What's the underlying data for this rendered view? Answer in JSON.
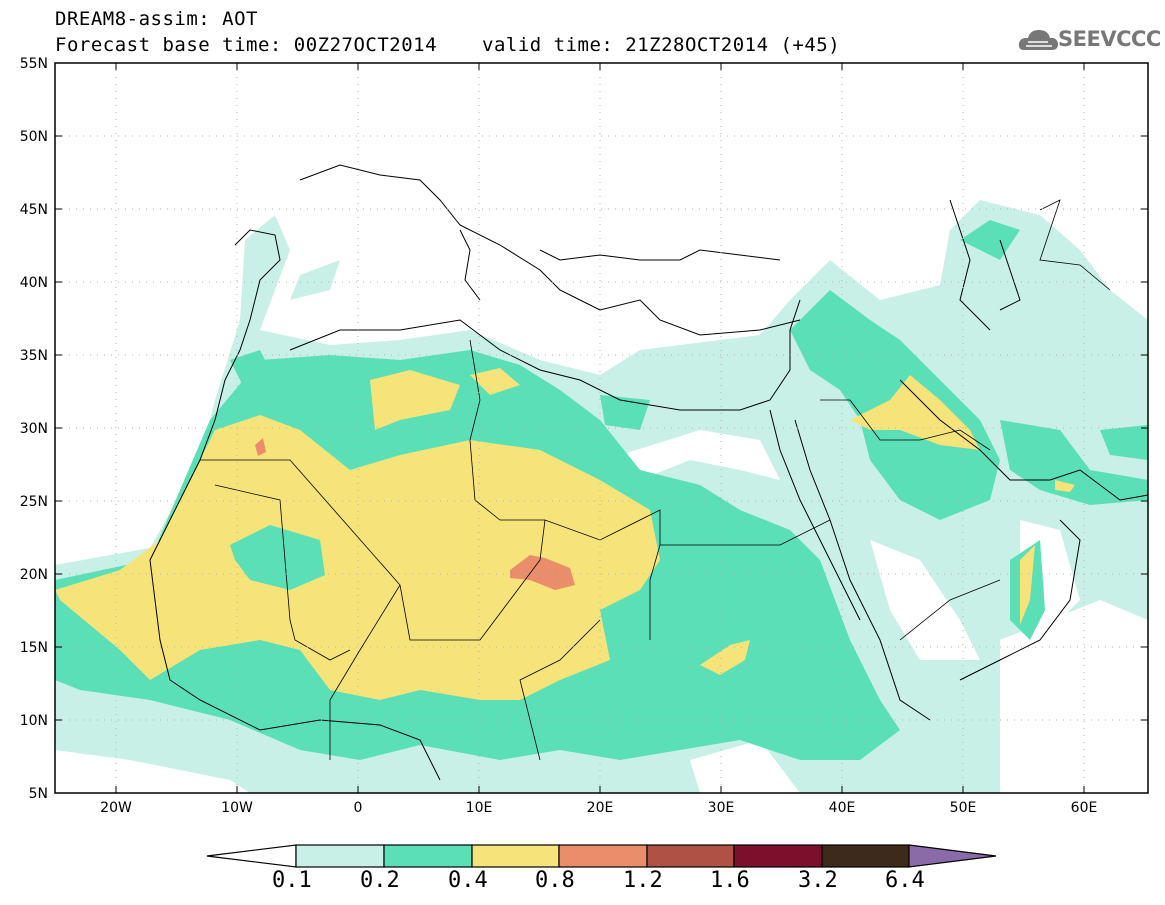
{
  "header": {
    "title_line1": "DREAM8-assim: AOT",
    "title_line2_left": "Forecast base time: 00Z27OCT2014",
    "title_line2_right": "valid time: 21Z28OCT2014 (+45)",
    "logo_text": "SEEVCCC"
  },
  "axes": {
    "lat_labels": [
      "55N",
      "50N",
      "45N",
      "40N",
      "35N",
      "30N",
      "25N",
      "20N",
      "15N",
      "10N",
      "5N"
    ],
    "lon_labels": [
      "20W",
      "10W",
      "0",
      "10E",
      "20E",
      "30E",
      "40E",
      "50E",
      "60E"
    ]
  },
  "colorbar": {
    "labels": [
      "0.1",
      "0.2",
      "0.4",
      "0.8",
      "1.2",
      "1.6",
      "3.2",
      "6.4"
    ],
    "colors": {
      "under": "#ffffff",
      "c1": "#c9f0e7",
      "c2": "#5adfb7",
      "c3": "#f6e37a",
      "c4": "#e98d6a",
      "c5": "#b05243",
      "c6": "#7b0f2c",
      "c7": "#3e2a1a",
      "over": "#8b6aa8"
    }
  },
  "map_colors": {
    "light": "#c9f0e7",
    "green": "#5adfb7",
    "yellow": "#f6e37a",
    "orange": "#e98d6a"
  }
}
